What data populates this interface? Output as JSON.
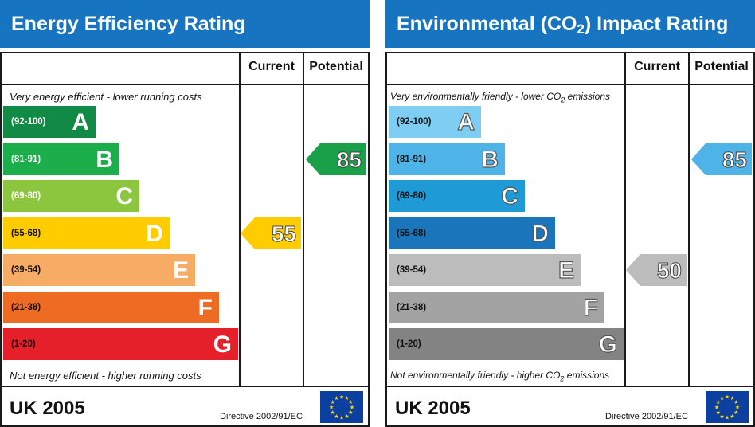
{
  "chart_data": [
    {
      "type": "bar",
      "title": "Energy Efficiency Rating",
      "columns": [
        "Current",
        "Potential"
      ],
      "top_note": "Very energy efficient - lower running costs",
      "bottom_note": "Not energy efficient - higher running costs",
      "bands": [
        {
          "range": "(92-100)",
          "letter": "A",
          "color": "#118a45"
        },
        {
          "range": "(81-91)",
          "letter": "B",
          "color": "#1bae4a"
        },
        {
          "range": "(69-80)",
          "letter": "C",
          "color": "#8cc63f"
        },
        {
          "range": "(55-68)",
          "letter": "D",
          "color": "#ffcc00"
        },
        {
          "range": "(39-54)",
          "letter": "E",
          "color": "#f7ac66"
        },
        {
          "range": "(21-38)",
          "letter": "F",
          "color": "#ee6b23"
        },
        {
          "range": "(1-20)",
          "letter": "G",
          "color": "#e5202a"
        }
      ],
      "current": {
        "value": "55",
        "band": "D",
        "color": "#ffcc00"
      },
      "potential": {
        "value": "85",
        "band": "B",
        "color": "#1aa049"
      },
      "footer": "UK 2005",
      "directive": "Directive 2002/91/EC"
    },
    {
      "type": "bar",
      "title": "Environmental (CO",
      "title_sub": "2",
      "title_end": ") Impact Rating",
      "columns": [
        "Current",
        "Potential"
      ],
      "top_note": "Very environmentally friendly - lower CO",
      "top_note_sub": "2",
      "top_note_end": " emissions",
      "bottom_note": "Not environmentally friendly - higher CO",
      "bottom_note_sub": "2",
      "bottom_note_end": " emissions",
      "bands": [
        {
          "range": "(92-100)",
          "letter": "A",
          "color": "#7dcef2"
        },
        {
          "range": "(81-91)",
          "letter": "B",
          "color": "#4eb3e6"
        },
        {
          "range": "(69-80)",
          "letter": "C",
          "color": "#1e9bd7"
        },
        {
          "range": "(55-68)",
          "letter": "D",
          "color": "#1a75bb"
        },
        {
          "range": "(39-54)",
          "letter": "E",
          "color": "#bcbcbc"
        },
        {
          "range": "(21-38)",
          "letter": "F",
          "color": "#a3a3a3"
        },
        {
          "range": "(1-20)",
          "letter": "G",
          "color": "#838383"
        }
      ],
      "current": {
        "value": "50",
        "band": "E",
        "color": "#bcbcbc"
      },
      "potential": {
        "value": "85",
        "band": "B",
        "color": "#4eb3e6"
      },
      "footer": "UK 2005",
      "directive": "Directive 2002/91/EC"
    }
  ]
}
